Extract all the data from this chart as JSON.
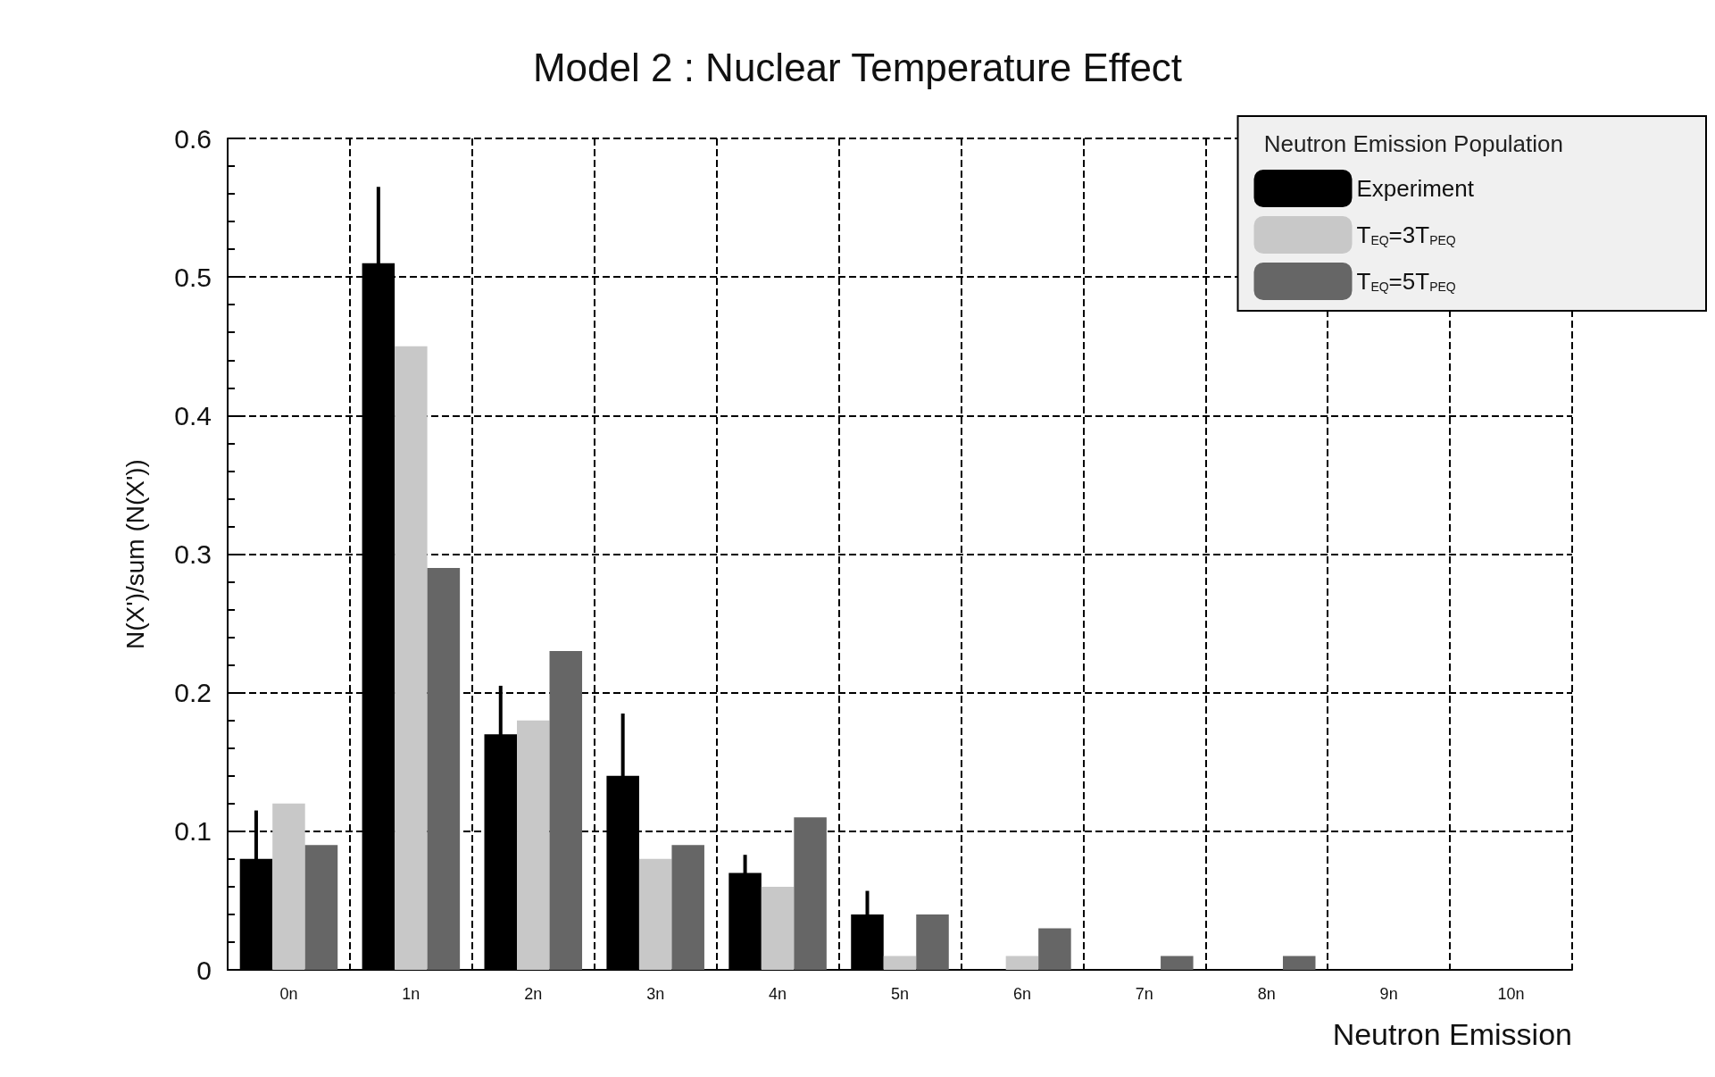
{
  "chart_data": {
    "type": "bar",
    "title": "Model 2 : Nuclear Temperature Effect",
    "xlabel": "Neutron Emission",
    "ylabel": "N(X')/sum (N(X'))",
    "legend_title": "Neutron Emission Population",
    "categories": [
      "0n",
      "1n",
      "2n",
      "3n",
      "4n",
      "5n",
      "6n",
      "7n",
      "8n",
      "9n",
      "10n"
    ],
    "series": [
      {
        "name": "Experiment",
        "color": "#000000",
        "values": [
          0.08,
          0.51,
          0.17,
          0.14,
          0.07,
          0.04,
          0,
          0,
          0,
          0,
          0
        ],
        "errors": [
          0.035,
          0.055,
          0.035,
          0.045,
          0.013,
          0.017,
          null,
          null,
          null,
          null,
          null
        ]
      },
      {
        "name": "T$_{EQ}$=3T$_{PEQ}$",
        "color": "#c8c8c8",
        "values": [
          0.12,
          0.45,
          0.18,
          0.08,
          0.06,
          0.01,
          0.01,
          0,
          0,
          0,
          0
        ]
      },
      {
        "name": "T$_{EQ}$=5T$_{PEQ}$",
        "color": "#666666",
        "values": [
          0.09,
          0.29,
          0.23,
          0.09,
          0.11,
          0.04,
          0.03,
          0.01,
          0.01,
          0,
          0
        ]
      }
    ],
    "ylim": [
      0,
      0.6
    ],
    "yticks": [
      0,
      0.1,
      0.2,
      0.3,
      0.4,
      0.5,
      0.6
    ],
    "grid": true,
    "legend": "top right"
  }
}
